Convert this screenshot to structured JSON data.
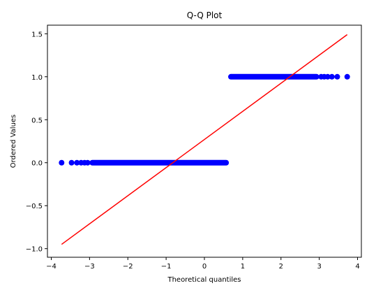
{
  "chart_data": {
    "type": "scatter",
    "title": "Q-Q Plot",
    "xlabel": "Theoretical quantiles",
    "ylabel": "Ordered Values",
    "xlim": [
      -4.1,
      4.1
    ],
    "ylim": [
      -1.1,
      1.6
    ],
    "xticks": [
      -4,
      -3,
      -2,
      -1,
      0,
      1,
      2,
      3,
      4
    ],
    "xtick_labels": [
      "−4",
      "−3",
      "−2",
      "−1",
      "0",
      "1",
      "2",
      "3",
      "4"
    ],
    "yticks": [
      -1.0,
      -0.5,
      0.0,
      0.5,
      1.0,
      1.5
    ],
    "ytick_labels": [
      "−1.0",
      "−0.5",
      "0.0",
      "0.5",
      "1.0",
      "1.5"
    ],
    "grid": false,
    "legend": "none",
    "series": [
      {
        "kind": "points",
        "color": "#0000ff",
        "segments": [
          {
            "y": 0.0,
            "x_points": [
              -3.73,
              -3.47,
              -3.33,
              -3.22,
              -3.13,
              -3.05
            ],
            "x_range": [
              -3.0,
              0.64
            ]
          },
          {
            "y": 1.0,
            "x_points": [
              3.73,
              3.47,
              3.33,
              3.22,
              3.13,
              3.05
            ],
            "x_range": [
              0.62,
              3.0
            ]
          }
        ]
      },
      {
        "kind": "fit-line",
        "color": "#ff0000",
        "x": [
          -3.73,
          3.73
        ],
        "y": [
          -0.95,
          1.49
        ]
      }
    ]
  }
}
